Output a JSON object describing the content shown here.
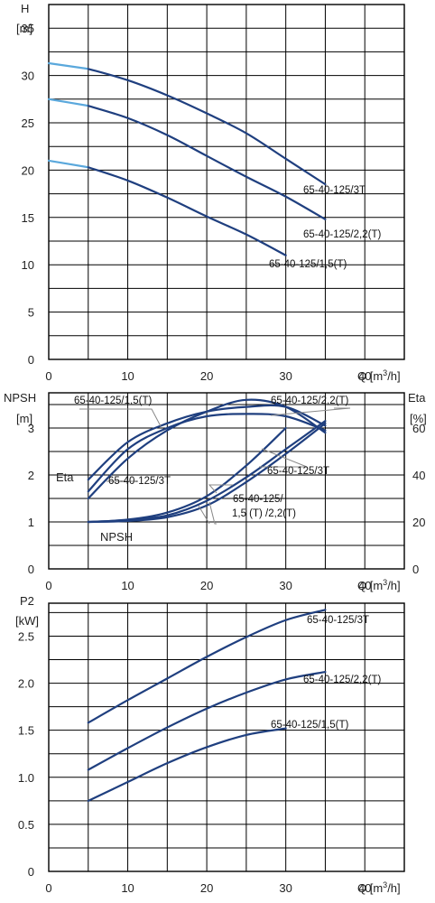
{
  "chart_data": [
    {
      "type": "line",
      "ylabel": "H",
      "yunit": "[m]",
      "xlabel": "Q",
      "xunit_base": "[m",
      "xunit_exp": "3",
      "xunit_tail": "/h]",
      "xlim": [
        0,
        45
      ],
      "ylim": [
        0,
        37.5
      ],
      "xticks": [
        0,
        10,
        20,
        30,
        40
      ],
      "yticks": [
        0,
        5,
        10,
        15,
        20,
        25,
        30,
        35
      ],
      "grid": true,
      "series": [
        {
          "name": "65-40-125/3T",
          "x": [
            0,
            5,
            10,
            15,
            20,
            25,
            30,
            35
          ],
          "y": [
            31.3,
            30.7,
            29.5,
            27.9,
            26.0,
            23.9,
            21.2,
            18.5
          ]
        },
        {
          "name": "65-40-125/2,2(T)",
          "x": [
            0,
            5,
            10,
            15,
            20,
            25,
            30,
            35
          ],
          "y": [
            27.5,
            26.8,
            25.5,
            23.7,
            21.5,
            19.3,
            17.2,
            14.8
          ]
        },
        {
          "name": "65-40-125/1,5(T)",
          "x": [
            0,
            5,
            10,
            15,
            20,
            25,
            30
          ],
          "y": [
            21.0,
            20.3,
            18.9,
            17.1,
            15.1,
            13.2,
            11.0
          ]
        }
      ]
    },
    {
      "type": "line",
      "ylabel": "NPSH",
      "yunit": "[m]",
      "y2label": "Eta",
      "y2unit": "[%]",
      "xlabel": "Q",
      "xunit_base": "[m",
      "xunit_exp": "3",
      "xunit_tail": "/h]",
      "xlim": [
        0,
        45
      ],
      "ylim": [
        0,
        3.75
      ],
      "y2lim": [
        0,
        75
      ],
      "xticks": [
        0,
        10,
        20,
        30,
        40
      ],
      "yticks": [
        0,
        1,
        2,
        3
      ],
      "y2ticks": [
        0,
        20,
        40,
        60
      ],
      "grid": true,
      "annotations": [
        "Eta",
        "NPSH",
        "65-40-125/1,5(T)",
        "65-40-125/2,2(T)",
        "65-40-125/3T",
        "65-40-125/3T",
        "65-40-125/",
        "1,5 (T) /2,2(T)"
      ],
      "eta_series": [
        {
          "name": "65-40-125/1,5(T)",
          "x": [
            5,
            10,
            15,
            20,
            25,
            30,
            35
          ],
          "y": [
            33,
            51,
            60,
            65,
            66,
            65,
            59
          ]
        },
        {
          "name": "65-40-125/2,2(T)",
          "x": [
            5,
            10,
            15,
            20,
            25,
            30,
            35
          ],
          "y": [
            38,
            54,
            62,
            67,
            69,
            69,
            61
          ]
        },
        {
          "name": "65-40-125/3T",
          "x": [
            5,
            10,
            15,
            20,
            25,
            30,
            35
          ],
          "y": [
            30,
            47,
            59,
            67,
            72,
            69,
            58
          ]
        }
      ],
      "npsh_series": [
        {
          "name": "65-40-125/1,5(T)",
          "x": [
            5,
            10,
            15,
            20,
            25,
            30
          ],
          "y": [
            1.0,
            1.05,
            1.2,
            1.55,
            2.2,
            3.0
          ]
        },
        {
          "name": "65-40-125/2,2(T)",
          "x": [
            5,
            10,
            15,
            20,
            25,
            30,
            35
          ],
          "y": [
            1.0,
            1.04,
            1.14,
            1.45,
            1.95,
            2.55,
            3.15
          ]
        },
        {
          "name": "65-40-125/3T",
          "x": [
            5,
            10,
            15,
            20,
            25,
            30,
            35
          ],
          "y": [
            1.0,
            1.02,
            1.1,
            1.35,
            1.85,
            2.45,
            3.1
          ]
        }
      ]
    },
    {
      "type": "line",
      "ylabel": "P2",
      "yunit": "[kW]",
      "xlabel": "Q",
      "xunit_base": "[m",
      "xunit_exp": "3",
      "xunit_tail": "/h]",
      "xlim": [
        0,
        45
      ],
      "ylim": [
        0,
        2.85
      ],
      "xticks": [
        0,
        10,
        20,
        30,
        40
      ],
      "yticks": [
        "0",
        "0.5",
        "1.0",
        "1.5",
        "2.0",
        "2.5"
      ],
      "grid": true,
      "series": [
        {
          "name": "65-40-125/3T",
          "x": [
            5,
            10,
            15,
            20,
            25,
            30,
            35
          ],
          "y": [
            1.58,
            1.82,
            2.05,
            2.28,
            2.49,
            2.67,
            2.78
          ]
        },
        {
          "name": "65-40-125/2,2(T)",
          "x": [
            5,
            10,
            15,
            20,
            25,
            30,
            35
          ],
          "y": [
            1.08,
            1.31,
            1.53,
            1.73,
            1.9,
            2.04,
            2.12
          ]
        },
        {
          "name": "65-40-125/1,5(T)",
          "x": [
            5,
            10,
            15,
            20,
            25,
            30
          ],
          "y": [
            0.75,
            0.95,
            1.15,
            1.32,
            1.45,
            1.52
          ]
        }
      ]
    }
  ]
}
